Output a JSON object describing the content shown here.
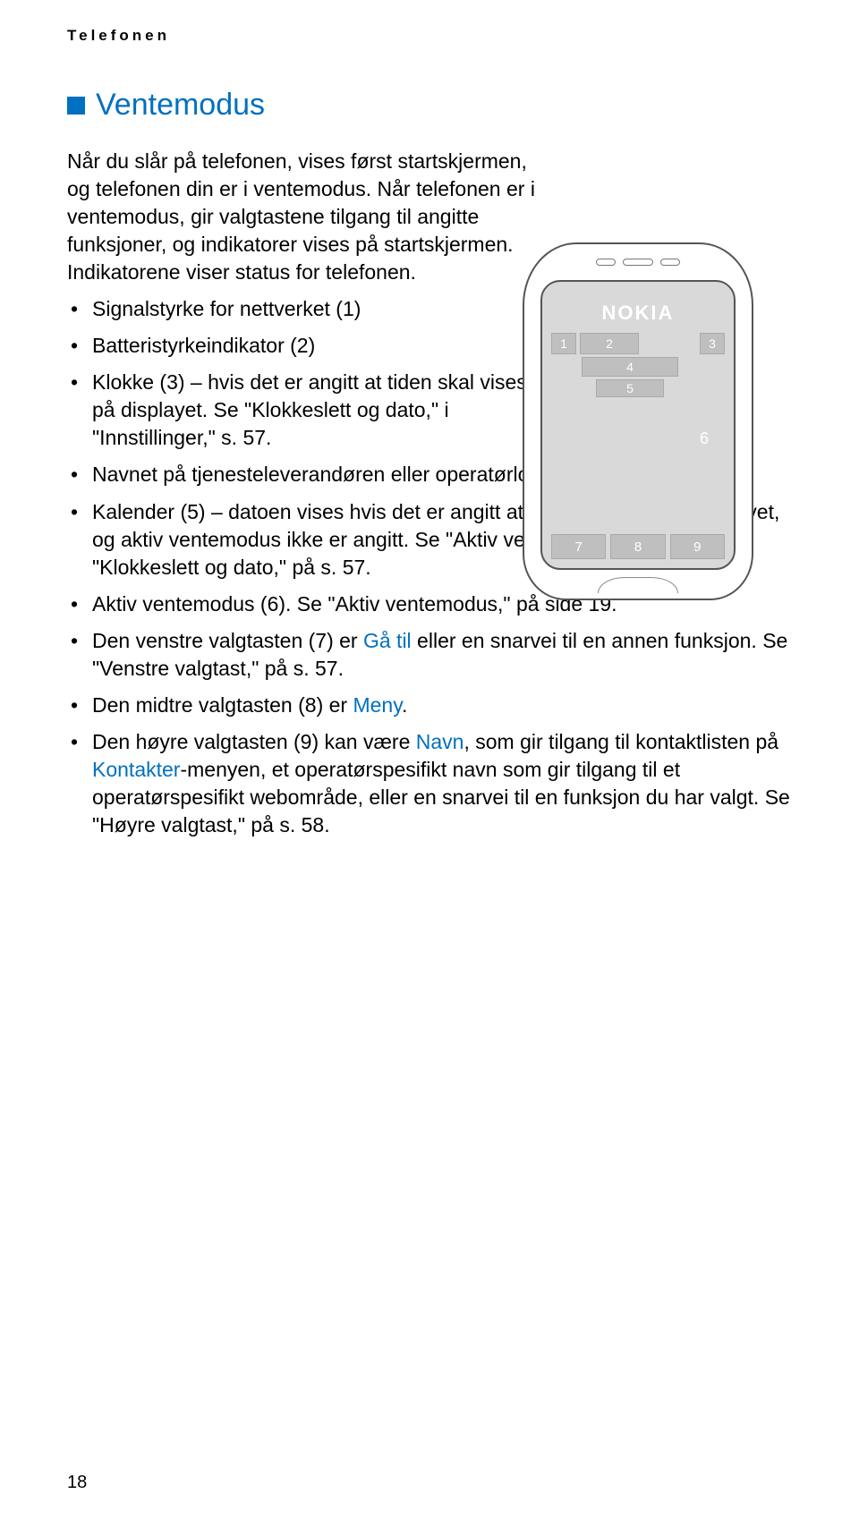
{
  "header": "Telefonen",
  "section_title": "Ventemodus",
  "intro": "Når du slår på telefonen, vises først startskjermen, og telefonen din er i ventemodus. Når telefonen er i ventemodus, gir valgtastene tilgang til angitte funksjoner, og indikatorer vises på startskjermen. Indikatorene viser status for telefonen.",
  "bullets": {
    "b1": "Signalstyrke for nettverket (1)",
    "b2": "Batteristyrkeindikator (2)",
    "b3": "Klokke (3) – hvis det er angitt at tiden skal vises på displayet. Se \"Klokkeslett og dato,\" i \"Innstillinger,\" s. 57.",
    "b4": "Navnet på tjenesteleverandøren eller operatørlogoen (4)",
    "b5": "Kalender (5) – datoen vises hvis det er angitt at den skal vises på displayet, og aktiv ventemodus ikke er angitt. Se \"Aktiv ventemodus,\" på s. 19 og \"Klokkeslett og dato,\" på s. 57.",
    "b6": "Aktiv ventemodus (6). Se \"Aktiv ventemodus,\" på side 19.",
    "b7a": "Den venstre valgtasten (7) er ",
    "b7_link": "Gå til",
    "b7b": " eller en snarvei til en annen funksjon. Se \"Venstre valgtast,\" på s. 57.",
    "b8a": "Den midtre valgtasten (8) er ",
    "b8_link": "Meny",
    "b8b": ".",
    "b9a": "Den høyre valgtasten (9) kan være ",
    "b9_link1": "Navn",
    "b9b": ", som gir tilgang til kontaktlisten på ",
    "b9_link2": "Kontakter",
    "b9c": "-menyen, et operatørspesifikt navn som gir tilgang til et operatørspesifikt webområde, eller en snarvei til en funksjon du har valgt. Se \"Høyre valgtast,\" på s. 58."
  },
  "phone": {
    "brand": "NOKIA",
    "n1": "1",
    "n2": "2",
    "n3": "3",
    "n4": "4",
    "n5": "5",
    "n6": "6",
    "n7": "7",
    "n8": "8",
    "n9": "9"
  },
  "page_number": "18",
  "colors": {
    "accent": "#0070c0",
    "phone_fill": "#d9d9d9",
    "phone_cell": "#bfbfbf"
  }
}
